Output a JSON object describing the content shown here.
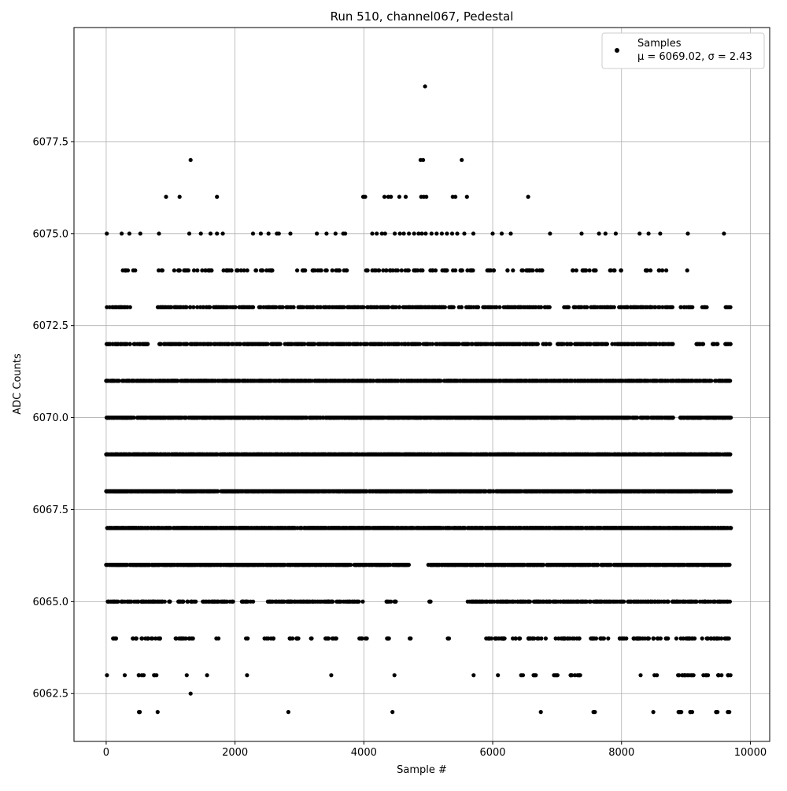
{
  "chart_data": {
    "type": "scatter",
    "title": "Run 510, channel067, Pedestal",
    "xlabel": "Sample #",
    "ylabel": "ADC Counts",
    "xlim": [
      -500,
      10300
    ],
    "ylim": [
      6061.2,
      6080.6
    ],
    "xticks": [
      0,
      2000,
      4000,
      6000,
      8000,
      10000
    ],
    "xtick_labels": [
      "0",
      "2000",
      "4000",
      "6000",
      "8000",
      "10000"
    ],
    "yticks": [
      6062.5,
      6065.0,
      6067.5,
      6070.0,
      6072.5,
      6075.0,
      6077.5
    ],
    "ytick_labels": [
      "6062.5",
      "6065.0",
      "6067.5",
      "6070.0",
      "6072.5",
      "6075.0",
      "6077.5"
    ],
    "grid": true,
    "legend_position": "top-right",
    "marker_color": "#000000",
    "series": [
      {
        "name": "Samples",
        "legend_label": "Samples",
        "legend_stats": "μ = 6069.02, σ = 2.43",
        "points": [
          {
            "x": 4950,
            "y": 6079
          },
          {
            "x": 1310,
            "y": 6077
          },
          {
            "x": 4880,
            "y": 6077
          },
          {
            "x": 4920,
            "y": 6077
          },
          {
            "x": 5520,
            "y": 6077
          },
          {
            "x": 930,
            "y": 6076
          },
          {
            "x": 1140,
            "y": 6076
          },
          {
            "x": 1720,
            "y": 6076
          },
          {
            "x": 3990,
            "y": 6076
          },
          {
            "x": 4020,
            "y": 6076
          },
          {
            "x": 4320,
            "y": 6076
          },
          {
            "x": 4380,
            "y": 6076
          },
          {
            "x": 4420,
            "y": 6076
          },
          {
            "x": 4550,
            "y": 6076
          },
          {
            "x": 4650,
            "y": 6076
          },
          {
            "x": 4890,
            "y": 6076
          },
          {
            "x": 4930,
            "y": 6076
          },
          {
            "x": 4970,
            "y": 6076
          },
          {
            "x": 5380,
            "y": 6076
          },
          {
            "x": 5420,
            "y": 6076
          },
          {
            "x": 5600,
            "y": 6076
          },
          {
            "x": 6550,
            "y": 6076
          },
          {
            "x": 10,
            "y": 6075
          },
          {
            "x": 240,
            "y": 6075
          },
          {
            "x": 360,
            "y": 6075
          },
          {
            "x": 530,
            "y": 6075
          },
          {
            "x": 820,
            "y": 6075
          },
          {
            "x": 1290,
            "y": 6075
          },
          {
            "x": 1470,
            "y": 6075
          },
          {
            "x": 1620,
            "y": 6075
          },
          {
            "x": 1720,
            "y": 6075
          },
          {
            "x": 1810,
            "y": 6075
          },
          {
            "x": 2280,
            "y": 6075
          },
          {
            "x": 2400,
            "y": 6075
          },
          {
            "x": 2520,
            "y": 6075
          },
          {
            "x": 2650,
            "y": 6075
          },
          {
            "x": 2680,
            "y": 6075
          },
          {
            "x": 2860,
            "y": 6075
          },
          {
            "x": 3270,
            "y": 6075
          },
          {
            "x": 3420,
            "y": 6075
          },
          {
            "x": 3560,
            "y": 6075
          },
          {
            "x": 3680,
            "y": 6075
          },
          {
            "x": 3710,
            "y": 6075
          },
          {
            "x": 4130,
            "y": 6075
          },
          {
            "x": 4200,
            "y": 6075
          },
          {
            "x": 4280,
            "y": 6075
          },
          {
            "x": 4330,
            "y": 6075
          },
          {
            "x": 4480,
            "y": 6075
          },
          {
            "x": 4560,
            "y": 6075
          },
          {
            "x": 4620,
            "y": 6075
          },
          {
            "x": 4700,
            "y": 6075
          },
          {
            "x": 4780,
            "y": 6075
          },
          {
            "x": 4850,
            "y": 6075
          },
          {
            "x": 4900,
            "y": 6075
          },
          {
            "x": 4960,
            "y": 6075
          },
          {
            "x": 5050,
            "y": 6075
          },
          {
            "x": 5130,
            "y": 6075
          },
          {
            "x": 5210,
            "y": 6075
          },
          {
            "x": 5290,
            "y": 6075
          },
          {
            "x": 5370,
            "y": 6075
          },
          {
            "x": 5450,
            "y": 6075
          },
          {
            "x": 5560,
            "y": 6075
          },
          {
            "x": 5700,
            "y": 6075
          },
          {
            "x": 6000,
            "y": 6075
          },
          {
            "x": 6140,
            "y": 6075
          },
          {
            "x": 6280,
            "y": 6075
          },
          {
            "x": 6890,
            "y": 6075
          },
          {
            "x": 7380,
            "y": 6075
          },
          {
            "x": 7650,
            "y": 6075
          },
          {
            "x": 7750,
            "y": 6075
          },
          {
            "x": 7910,
            "y": 6075
          },
          {
            "x": 8280,
            "y": 6075
          },
          {
            "x": 8420,
            "y": 6075
          },
          {
            "x": 8600,
            "y": 6075
          },
          {
            "x": 9030,
            "y": 6075
          },
          {
            "x": 9590,
            "y": 6075
          },
          {
            "x": 1310,
            "y": 6062.5
          }
        ],
        "bands": [
          {
            "y": 6074,
            "x_ranges": [
              [
                250,
                500
              ],
              [
                800,
                900
              ],
              [
                1000,
                2200
              ],
              [
                2300,
                2700
              ],
              [
                2900,
                3100
              ],
              [
                3200,
                3800
              ],
              [
                4000,
                5700
              ],
              [
                5900,
                6100
              ],
              [
                6200,
                6800
              ],
              [
                7200,
                7700
              ],
              [
                7800,
                8000
              ],
              [
                8350,
                8700
              ]
            ],
            "density": 0.03,
            "extra_x": [
              9020
            ]
          },
          {
            "y": 6073,
            "x_ranges": [
              [
                0,
                400
              ],
              [
                800,
                5800
              ],
              [
                5850,
                6900
              ],
              [
                7100,
                8800
              ],
              [
                8900,
                9100
              ],
              [
                9250,
                9350
              ],
              [
                9600,
                9700
              ]
            ],
            "density": 0.06
          },
          {
            "y": 6072,
            "x_ranges": [
              [
                0,
                650
              ],
              [
                800,
                6900
              ],
              [
                7000,
                8800
              ],
              [
                9150,
                9300
              ],
              [
                9400,
                9500
              ],
              [
                9600,
                9700
              ]
            ],
            "density": 0.08
          },
          {
            "y": 6071,
            "x_ranges": [
              [
                0,
                9700
              ]
            ],
            "density": 0.14
          },
          {
            "y": 6070,
            "x_ranges": [
              [
                0,
                8800
              ],
              [
                8900,
                9700
              ]
            ],
            "density": 0.16
          },
          {
            "y": 6069,
            "x_ranges": [
              [
                0,
                9700
              ]
            ],
            "density": 0.2
          },
          {
            "y": 6068,
            "x_ranges": [
              [
                0,
                9700
              ]
            ],
            "density": 0.18
          },
          {
            "y": 6067,
            "x_ranges": [
              [
                0,
                9700
              ]
            ],
            "density": 0.18
          },
          {
            "y": 6066,
            "x_ranges": [
              [
                0,
                4700
              ],
              [
                5000,
                9700
              ]
            ],
            "density": 0.14
          },
          {
            "y": 6065,
            "x_ranges": [
              [
                0,
                1000
              ],
              [
                1100,
                1400
              ],
              [
                1500,
                2000
              ],
              [
                2100,
                2300
              ],
              [
                2500,
                4000
              ],
              [
                4350,
                4500
              ],
              [
                5000,
                5050
              ],
              [
                5600,
                9700
              ]
            ],
            "density": 0.08
          },
          {
            "y": 6064,
            "x_ranges": [
              [
                100,
                200
              ],
              [
                400,
                850
              ],
              [
                1050,
                1350
              ],
              [
                1700,
                1750
              ],
              [
                2150,
                2200
              ],
              [
                2450,
                2600
              ],
              [
                2800,
                3000
              ],
              [
                3150,
                3200
              ],
              [
                3400,
                3600
              ],
              [
                3900,
                4050
              ],
              [
                4350,
                4450
              ],
              [
                4700,
                4750
              ],
              [
                5300,
                5350
              ],
              [
                5850,
                6450
              ],
              [
                6550,
                6850
              ],
              [
                6950,
                7350
              ],
              [
                7500,
                7800
              ],
              [
                7950,
                8100
              ],
              [
                8150,
                8750
              ],
              [
                8850,
                9150
              ],
              [
                9250,
                9700
              ]
            ],
            "density": 0.04
          },
          {
            "y": 6063,
            "x_ranges": [
              [
                0,
                20
              ],
              [
                280,
                300
              ],
              [
                500,
                600
              ],
              [
                720,
                800
              ],
              [
                1250,
                1270
              ],
              [
                1550,
                1570
              ],
              [
                2170,
                2190
              ],
              [
                3490,
                3510
              ],
              [
                4460,
                4480
              ],
              [
                5690,
                5710
              ],
              [
                6070,
                6090
              ],
              [
                6430,
                6470
              ],
              [
                6580,
                6680
              ],
              [
                6950,
                7050
              ],
              [
                7150,
                7370
              ],
              [
                8280,
                8300
              ],
              [
                8500,
                8550
              ],
              [
                8850,
                9150
              ],
              [
                9250,
                9350
              ],
              [
                9450,
                9700
              ]
            ],
            "density": 0.04
          },
          {
            "y": 6062,
            "x_ranges": [
              [
                500,
                550
              ],
              [
                780,
                800
              ],
              [
                2810,
                2830
              ],
              [
                4440,
                4460
              ],
              [
                6730,
                6750
              ],
              [
                7560,
                7600
              ],
              [
                8480,
                8500
              ],
              [
                8850,
                8950
              ],
              [
                9050,
                9100
              ],
              [
                9450,
                9500
              ],
              [
                9650,
                9680
              ]
            ],
            "density": 0.05
          }
        ]
      }
    ]
  }
}
